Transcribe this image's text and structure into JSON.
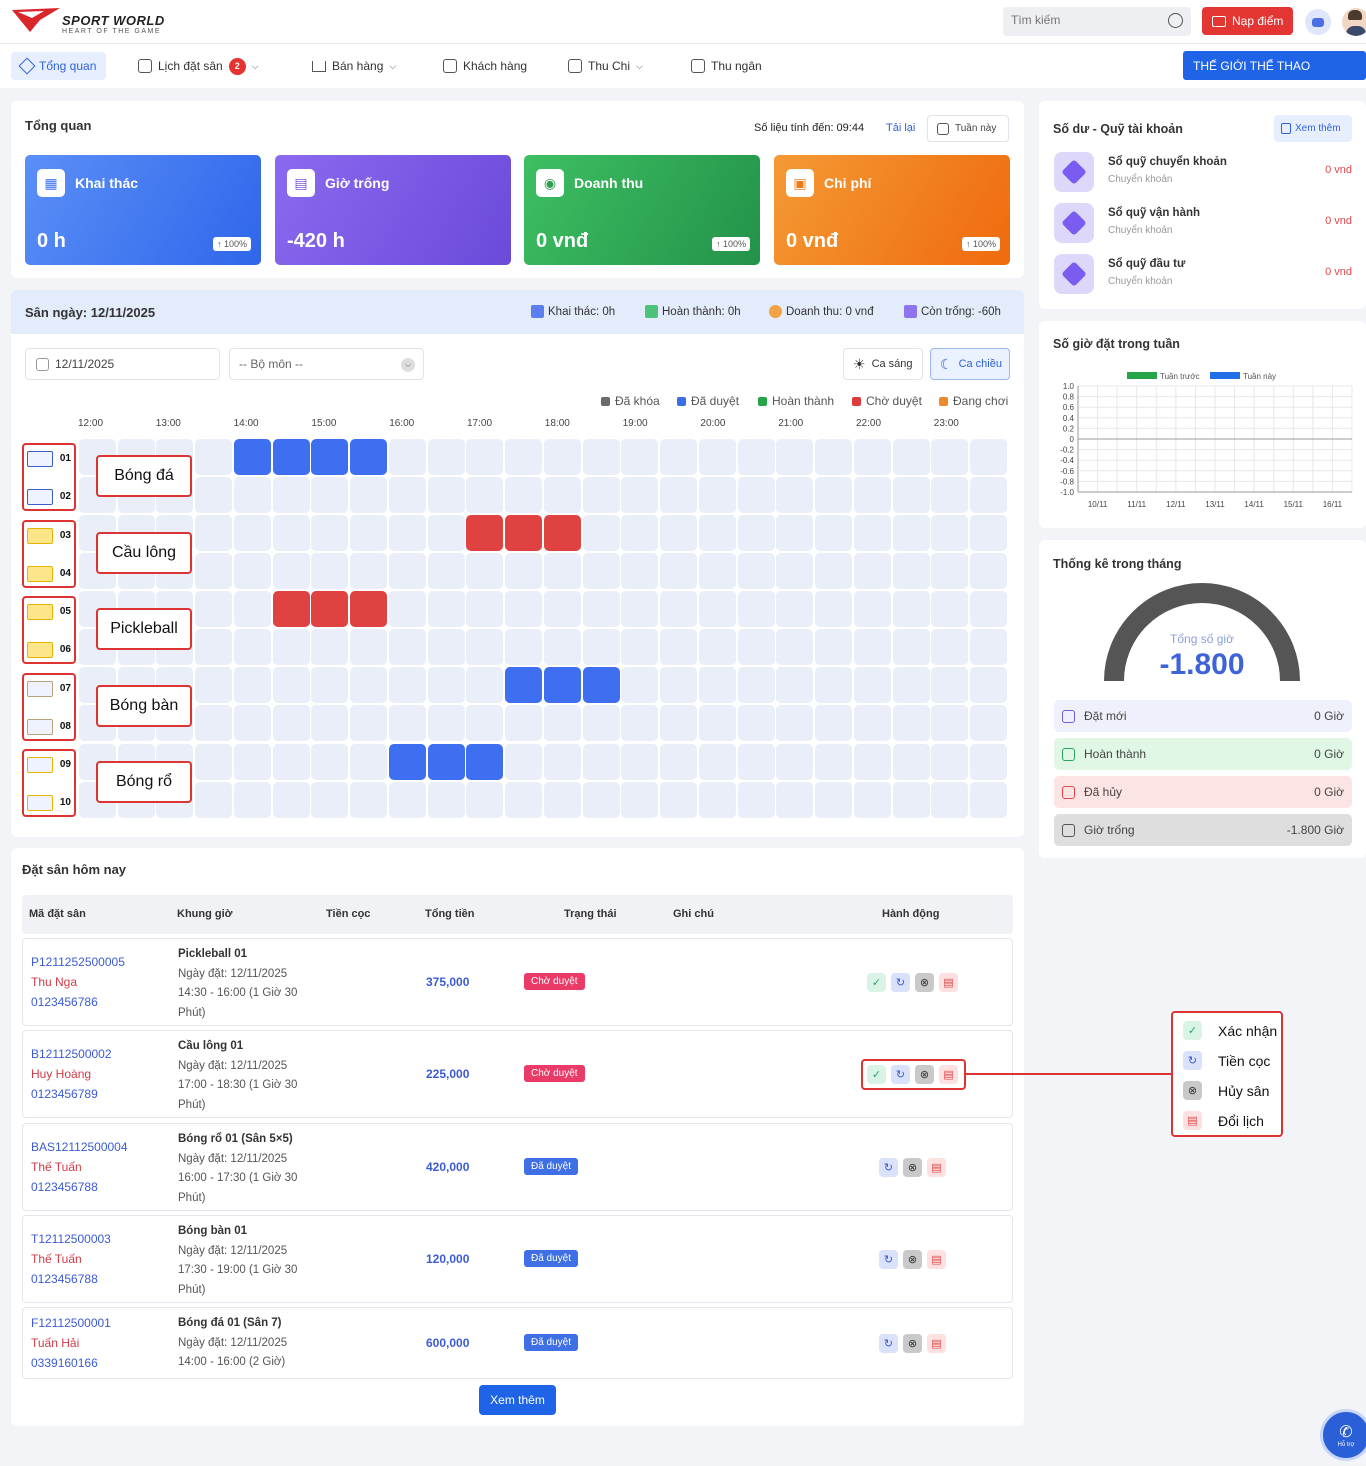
{
  "brand": {
    "name": "SPORT WORLD",
    "tagline": "HEART OF THE GAME"
  },
  "header": {
    "search_placeholder": "Tìm kiếm",
    "topup_label": "Nạp điểm"
  },
  "nav": {
    "items": [
      {
        "label": "Tổng quan"
      },
      {
        "label": "Lịch đặt sân",
        "badge": "2"
      },
      {
        "label": "Bán hàng"
      },
      {
        "label": "Khách hàng"
      },
      {
        "label": "Thu Chi"
      },
      {
        "label": "Thu ngân"
      }
    ],
    "venue_button": "THẾ GIỚI THỂ THAO"
  },
  "overview": {
    "title": "Tổng quan",
    "as_of": "Số liệu tính đến: 09:44",
    "reload": "Tải lại",
    "period": "Tuần này",
    "cards": [
      {
        "title": "Khai thác",
        "value": "0 h",
        "pct": "↑ 100%",
        "color": "#3b73f2"
      },
      {
        "title": "Giờ trống",
        "value": "-420 h",
        "pct": "",
        "color": "#7b56e4"
      },
      {
        "title": "Doanh thu",
        "value": "0 vnđ",
        "pct": "↑ 100%",
        "color": "#2e9d4e"
      },
      {
        "title": "Chi phí",
        "value": "0 vnđ",
        "pct": "↑ 100%",
        "color": "#f07a14"
      }
    ]
  },
  "schedule": {
    "title": "Sân ngày: 12/11/2025",
    "stats": [
      "Khai thác: 0h",
      "Hoàn thành: 0h",
      "Doanh thu: 0 vnđ",
      "Còn trống: -60h"
    ],
    "date": "12/11/2025",
    "sport_placeholder": "-- Bộ môn --",
    "morning": "Ca sáng",
    "afternoon": "Ca chiều",
    "legend": [
      {
        "label": "Đã khóa",
        "color": "#6b6b6b"
      },
      {
        "label": "Đã duyệt",
        "color": "#3b6fe6"
      },
      {
        "label": "Hoàn thành",
        "color": "#26a548"
      },
      {
        "label": "Chờ duyệt",
        "color": "#de3b3b"
      },
      {
        "label": "Đang chơi",
        "color": "#f0892a"
      }
    ],
    "times": [
      "12:00",
      "13:00",
      "14:00",
      "15:00",
      "16:00",
      "17:00",
      "18:00",
      "19:00",
      "20:00",
      "21:00",
      "22:00",
      "23:00"
    ],
    "sports": [
      "Bóng đá",
      "Cầu lông",
      "Pickleball",
      "Bóng bàn",
      "Bóng rổ"
    ],
    "courts": [
      "01",
      "02",
      "03",
      "04",
      "05",
      "06",
      "07",
      "08",
      "09",
      "10"
    ],
    "bookings": [
      {
        "court": 0,
        "start": 4,
        "len": 4,
        "status": "blue"
      },
      {
        "court": 2,
        "start": 10,
        "len": 3,
        "status": "red"
      },
      {
        "court": 4,
        "start": 5,
        "len": 3,
        "status": "red"
      },
      {
        "court": 6,
        "start": 11,
        "len": 3,
        "status": "blue"
      },
      {
        "court": 8,
        "start": 8,
        "len": 3,
        "status": "blue"
      }
    ]
  },
  "today": {
    "title": "Đặt sân hôm nay",
    "headers": [
      "Mã đặt sân",
      "Khung giờ",
      "Tiền cọc",
      "Tổng tiền",
      "Trạng thái",
      "Ghi chú",
      "Hành động"
    ],
    "rows": [
      {
        "code": "P1211252500005",
        "name": "Thu Nga",
        "phone": "0123456786",
        "court": "Pickleball 01",
        "date": "Ngày đặt: 12/11/2025",
        "time": "14:30 - 16:00 (1 Giờ 30",
        "time2": "Phút)",
        "total": "375,000",
        "status": "Chờ duyệt"
      },
      {
        "code": "B12112500002",
        "name": "Huy Hoàng",
        "phone": "0123456789",
        "court": "Cầu lông 01",
        "date": "Ngày đặt: 12/11/2025",
        "time": "17:00 - 18:30 (1 Giờ 30",
        "time2": "Phút)",
        "total": "225,000",
        "status": "Chờ duyệt"
      },
      {
        "code": "BAS12112500004",
        "name": "Thế Tuấn",
        "phone": "0123456788",
        "court": "Bóng rổ 01 (Sân 5×5)",
        "date": "Ngày đặt: 12/11/2025",
        "time": "16:00 - 17:30 (1 Giờ 30",
        "time2": "Phút)",
        "total": "420,000",
        "status": "Đã duyệt"
      },
      {
        "code": "T12112500003",
        "name": "Thế Tuấn",
        "phone": "0123456788",
        "court": "Bóng bàn 01",
        "date": "Ngày đặt: 12/11/2025",
        "time": "17:30 - 19:00 (1 Giờ 30",
        "time2": "Phút)",
        "total": "120,000",
        "status": "Đã duyệt"
      },
      {
        "code": "F12112500001",
        "name": "Tuấn Hải",
        "phone": "0339160166",
        "court": "Bóng đá 01 (Sân 7)",
        "date": "Ngày đặt: 12/11/2025",
        "time": "14:00 - 16:00 (2 Giờ)",
        "time2": "",
        "total": "600,000",
        "status": "Đã duyệt"
      }
    ],
    "more": "Xem thêm"
  },
  "funds": {
    "title": "Số dư - Quỹ tài khoản",
    "more": "Xem thêm",
    "items": [
      {
        "name": "Sổ quỹ chuyển khoản",
        "sub": "Chuyển khoản",
        "value": "0 vnd"
      },
      {
        "name": "Sổ quỹ vận hành",
        "sub": "Chuyển khoản",
        "value": "0 vnd"
      },
      {
        "name": "Sổ quỹ đầu tư",
        "sub": "Chuyển khoản",
        "value": "0 vnd"
      }
    ]
  },
  "weekly": {
    "title": "Số giờ đặt trong tuần"
  },
  "chart_data": {
    "type": "bar",
    "categories": [
      "10/11",
      "11/11",
      "12/11",
      "13/11",
      "14/11",
      "15/11",
      "16/11"
    ],
    "series": [
      {
        "name": "Tuần trước",
        "values": [
          0,
          0,
          0,
          0,
          0,
          0,
          0
        ],
        "color": "#26a548"
      },
      {
        "name": "Tuần này",
        "values": [
          0,
          0,
          0,
          0,
          0,
          0,
          0
        ],
        "color": "#1f6fe8"
      }
    ],
    "ylim": [
      -1.0,
      1.0
    ],
    "yticks": [
      "1.0",
      "0.8",
      "0.6",
      "0.4",
      "0.2",
      "0",
      "-0.2",
      "-0.4",
      "-0.6",
      "-0.8",
      "-1.0"
    ],
    "grid": true,
    "legend": "top"
  },
  "monthly": {
    "title": "Thống kê trong tháng",
    "gauge_label": "Tổng số giờ",
    "gauge_value": "-1.800",
    "rows": [
      {
        "label": "Đặt mới",
        "value": "0 Giờ",
        "bg": "#eef0fb"
      },
      {
        "label": "Hoàn thành",
        "value": "0 Giờ",
        "bg": "#e1f7e6"
      },
      {
        "label": "Đã hủy",
        "value": "0 Giờ",
        "bg": "#fde4e4"
      },
      {
        "label": "Giờ trống",
        "value": "-1.800 Giờ",
        "bg": "#dedede"
      }
    ]
  },
  "actions_legend": [
    "Xác nhận",
    "Tiền cọc",
    "Hủy sân",
    "Đổi lịch"
  ],
  "support": "Hỗ trợ"
}
